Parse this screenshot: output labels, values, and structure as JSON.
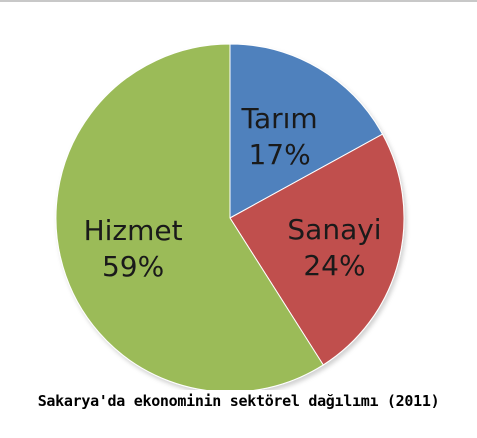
{
  "chart_data": {
    "type": "pie",
    "title": "Sakarya'da ekonominin sektörel dağılımı (2011)",
    "slices": [
      {
        "label": "Tarım",
        "value": 17,
        "value_label": "17%",
        "color": "#4f81bd"
      },
      {
        "label": "Sanayi",
        "value": 24,
        "value_label": "24%",
        "color": "#c0504d"
      },
      {
        "label": "Hizmet",
        "value": 59,
        "value_label": "59%",
        "color": "#9bbb59"
      }
    ]
  }
}
